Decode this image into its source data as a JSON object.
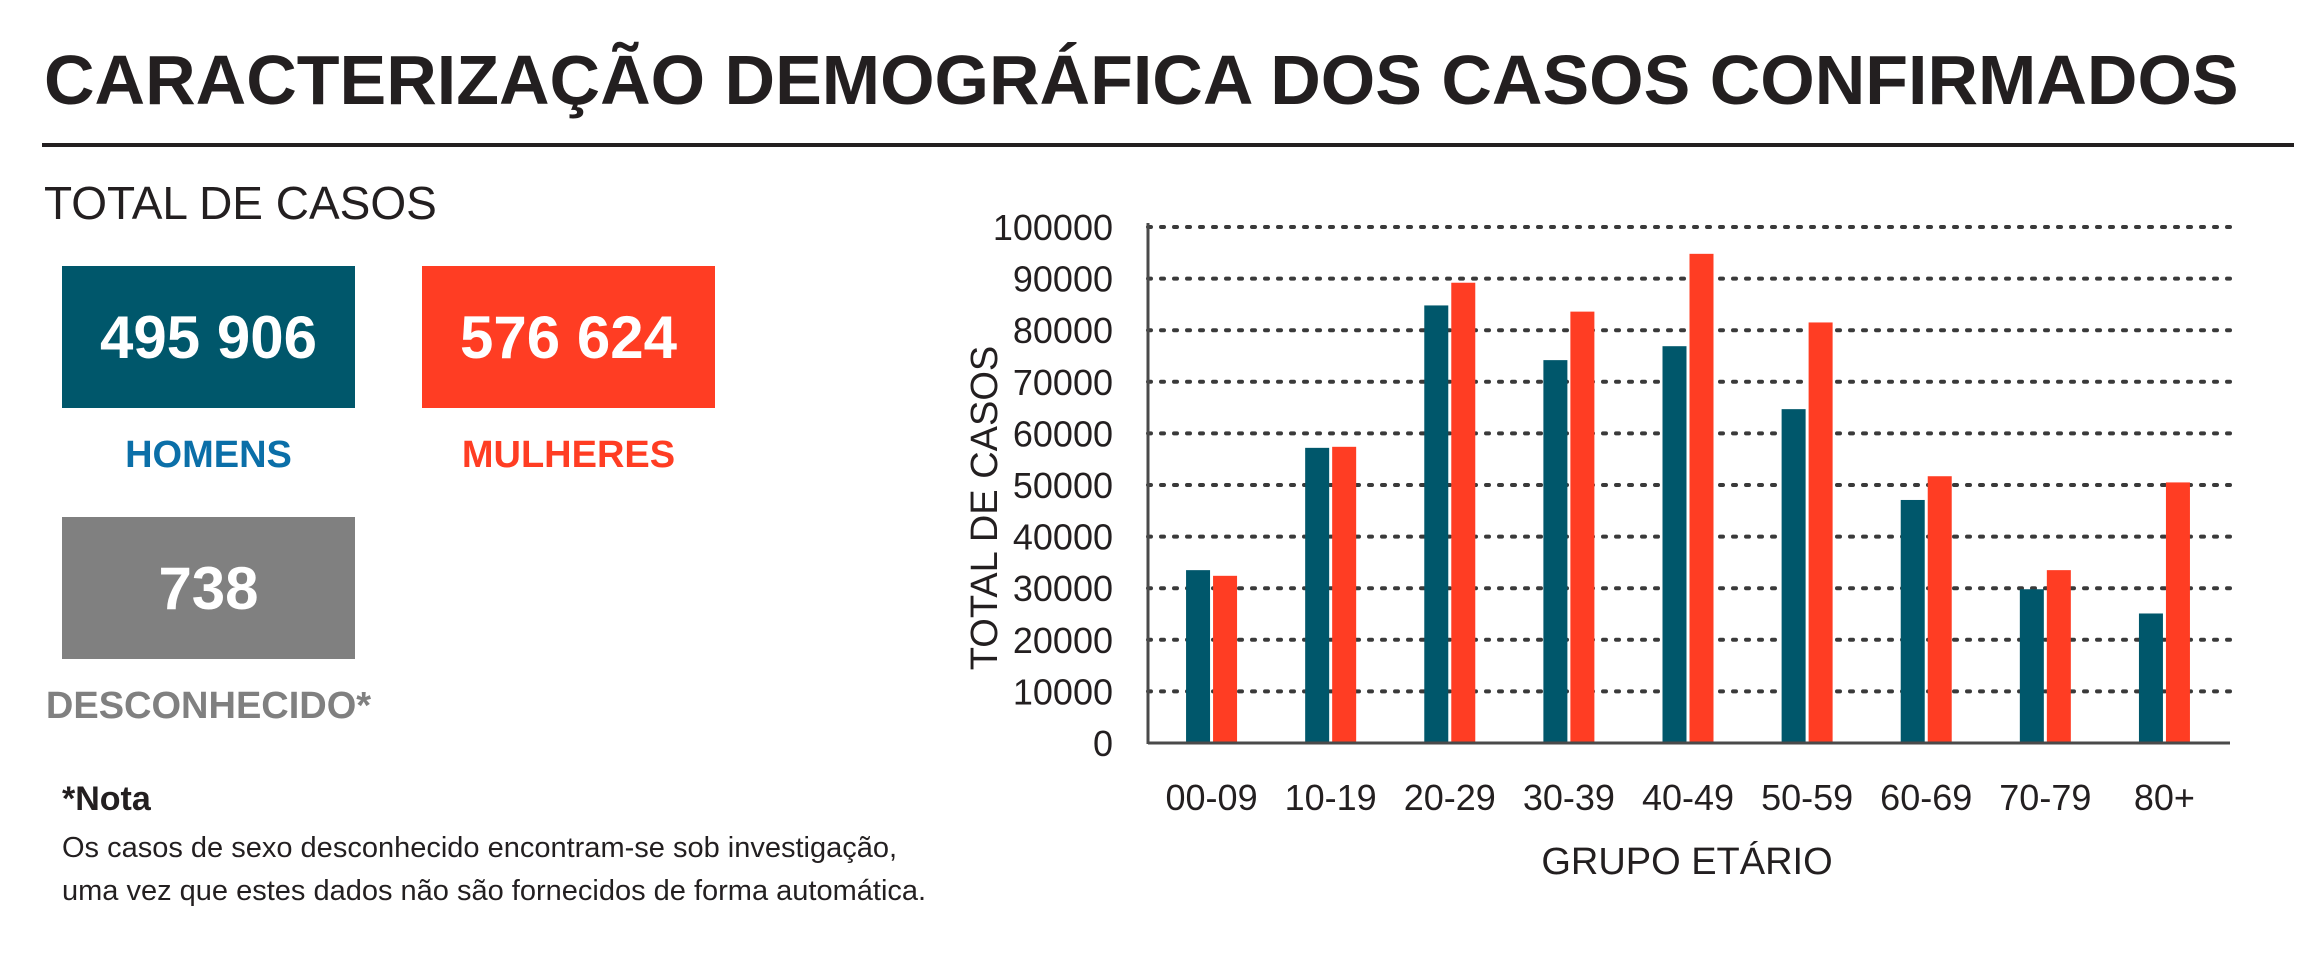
{
  "header": {
    "title": "CARACTERIZAÇÃO DEMOGRÁFICA DOS CASOS CONFIRMADOS"
  },
  "summary": {
    "label": "TOTAL DE CASOS",
    "homens": {
      "value": "495 906",
      "label": "HOMENS"
    },
    "mulheres": {
      "value": "576 624",
      "label": "MULHERES"
    },
    "desconhecido": {
      "value": "738",
      "label": "DESCONHECIDO*"
    }
  },
  "note": {
    "title": "*Nota",
    "line1": "Os casos de sexo desconhecido encontram-se sob investigação,",
    "line2": "uma vez que estes dados não são fornecidos de forma automática."
  },
  "colors": {
    "homens": "#00576b",
    "mulheres": "#ff3d23",
    "desconhecido": "#808080",
    "homens_label": "#0b6fa8",
    "text": "#231f20"
  },
  "chart_data": {
    "type": "bar",
    "categories": [
      "00-09",
      "10-19",
      "20-29",
      "30-39",
      "40-49",
      "50-59",
      "60-69",
      "70-79",
      "80+"
    ],
    "series": [
      {
        "values": [
          33500,
          57200,
          84800,
          74200,
          76900,
          64700,
          47100,
          29800,
          25100
        ]
      },
      {
        "values": [
          32400,
          57400,
          89200,
          83600,
          94800,
          81500,
          51700,
          33500,
          50500
        ]
      }
    ],
    "xlabel": "GRUPO ETÁRIO",
    "ylabel": "TOTAL DE CASOS",
    "ylim": [
      0,
      100000
    ],
    "yticks": [
      0,
      10000,
      20000,
      30000,
      40000,
      50000,
      60000,
      70000,
      80000,
      90000,
      100000
    ],
    "grid": true,
    "legend": "none"
  }
}
